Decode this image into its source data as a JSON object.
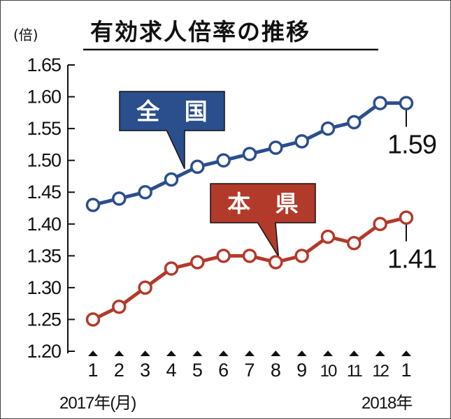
{
  "title": "有効求人倍率の推移",
  "unit_label": "(倍)",
  "start_year_label": "2017年(月)",
  "end_year_label": "2018年",
  "chart_data": {
    "type": "line",
    "title": "有効求人倍率の推移",
    "ylabel": "(倍)",
    "ylim": [
      1.2,
      1.65
    ],
    "yticks": [
      "1.65",
      "1.60",
      "1.55",
      "1.50",
      "1.45",
      "1.40",
      "1.35",
      "1.30",
      "1.25",
      "1.20"
    ],
    "categories": [
      "1",
      "2",
      "3",
      "4",
      "5",
      "6",
      "7",
      "8",
      "9",
      "10",
      "11",
      "12",
      "1"
    ],
    "series": [
      {
        "name": "全 国",
        "color": "#2b4e8c",
        "values": [
          1.43,
          1.44,
          1.45,
          1.47,
          1.49,
          1.5,
          1.51,
          1.52,
          1.53,
          1.55,
          1.56,
          1.59,
          1.59
        ],
        "end_label": "1.59"
      },
      {
        "name": "本 県",
        "color": "#b23a2a",
        "values": [
          1.25,
          1.27,
          1.3,
          1.33,
          1.34,
          1.35,
          1.35,
          1.34,
          1.35,
          1.38,
          1.37,
          1.4,
          1.41
        ],
        "end_label": "1.41"
      }
    ],
    "grid": false,
    "legend": "inline callout labels"
  }
}
